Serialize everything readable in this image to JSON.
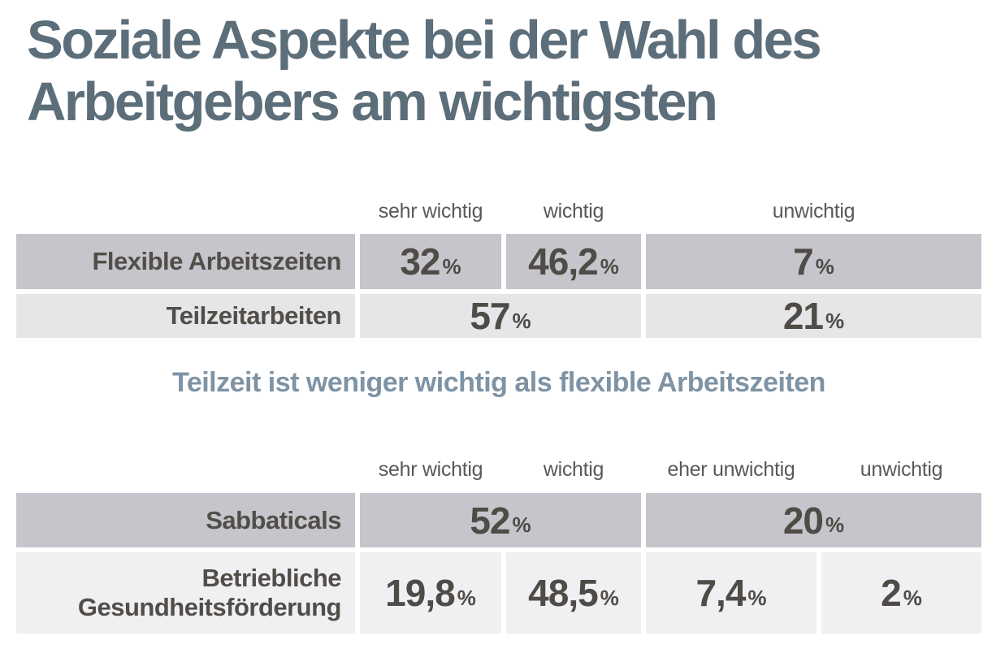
{
  "title": {
    "lines": [
      "Soziale Aspekte bei der Wahl des",
      "Arbeitgebers am wichtigsten"
    ],
    "color": "#5c6e7a"
  },
  "note": {
    "text": "Teilzeit ist weniger wichtig als flexible Arbeitszeiten",
    "color": "#7e93a4"
  },
  "colors": {
    "row_dark_bg": "#c6c5cb",
    "row_light_bg_table1": "#e6e5e8",
    "row_light_bg_table2": "#f0eff2",
    "cell_text": "#4f4c47",
    "header_text": "#58595b",
    "background": "#ffffff"
  },
  "chart_data": [
    {
      "type": "table",
      "columns": [
        "sehr wichtig",
        "wichtig",
        "unwichtig"
      ],
      "rows": [
        {
          "label": "Flexible Arbeitszeiten",
          "cells": [
            {
              "column": "sehr wichtig",
              "value": "32",
              "value_num": 32,
              "unit": "%"
            },
            {
              "column": "wichtig",
              "value": "46,2",
              "value_num": 46.2,
              "unit": "%"
            },
            {
              "column": "unwichtig",
              "value": "7",
              "value_num": 7,
              "unit": "%"
            }
          ]
        },
        {
          "label": "Teilzeitarbeiten",
          "cells": [
            {
              "column": "sehr wichtig + wichtig",
              "value": "57",
              "value_num": 57,
              "unit": "%"
            },
            {
              "column": "unwichtig",
              "value": "21",
              "value_num": 21,
              "unit": "%"
            }
          ]
        }
      ]
    },
    {
      "type": "table",
      "columns": [
        "sehr wichtig",
        "wichtig",
        "eher unwichtig",
        "unwichtig"
      ],
      "rows": [
        {
          "label": "Sabbaticals",
          "cells": [
            {
              "column": "sehr wichtig + wichtig",
              "value": "52",
              "value_num": 52,
              "unit": "%"
            },
            {
              "column": "eher unwichtig + unwichtig",
              "value": "20",
              "value_num": 20,
              "unit": "%"
            }
          ]
        },
        {
          "label": "Betriebliche Gesundheitsförderung",
          "cells": [
            {
              "column": "sehr wichtig",
              "value": "19,8",
              "value_num": 19.8,
              "unit": "%"
            },
            {
              "column": "wichtig",
              "value": "48,5",
              "value_num": 48.5,
              "unit": "%"
            },
            {
              "column": "eher unwichtig",
              "value": "7,4",
              "value_num": 7.4,
              "unit": "%"
            },
            {
              "column": "unwichtig",
              "value": "2",
              "value_num": 2,
              "unit": "%"
            }
          ]
        }
      ]
    }
  ]
}
